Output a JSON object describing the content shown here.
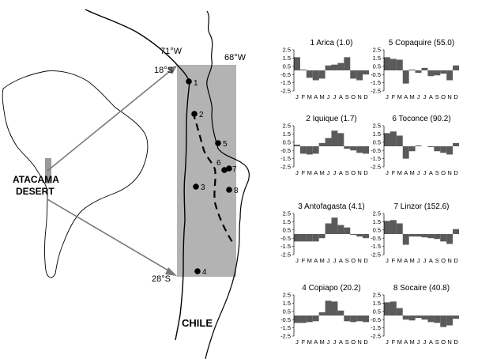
{
  "map": {
    "labels": {
      "lon_71": "71°W",
      "lon_68": "68°W",
      "lat_18": "18°S",
      "lat_28": "28°S",
      "region_line1": "ATACAMA",
      "region_line2": "DESERT",
      "country": "CHILE"
    },
    "stations": [
      {
        "number": "1"
      },
      {
        "number": "2"
      },
      {
        "number": "3"
      },
      {
        "number": "4"
      },
      {
        "number": "5"
      },
      {
        "number": "6"
      },
      {
        "number": "7"
      },
      {
        "number": "8"
      }
    ],
    "colors": {
      "box": "#b3b3b3",
      "arrow": "#7a7a7a",
      "land": "#ffffff",
      "outline": "#000000"
    }
  },
  "chart_data": {
    "type": "bar",
    "categories": [
      "J",
      "F",
      "M",
      "A",
      "M",
      "J",
      "J",
      "A",
      "S",
      "O",
      "N",
      "D"
    ],
    "yticks": [
      "2.5",
      "1.5",
      "0.5",
      "-0.5",
      "-1.5",
      "-2.5"
    ],
    "ylim": [
      -2.5,
      2.5
    ],
    "bar_color": "#5a5a5a",
    "panels": [
      {
        "title": "1 Arica (1.0)",
        "values": [
          1.6,
          0.1,
          -0.9,
          -1.2,
          -1.0,
          0.6,
          0.7,
          0.9,
          1.6,
          -1.0,
          -1.2,
          -0.5
        ]
      },
      {
        "title": "5 Copaquire (55.0)",
        "values": [
          1.6,
          1.4,
          1.3,
          -1.6,
          0.1,
          -0.3,
          0.3,
          -0.7,
          -0.6,
          -0.4,
          -1.2,
          0.6
        ]
      },
      {
        "title": "2 Iquique (1.7)",
        "values": [
          0.2,
          -0.9,
          -1.0,
          -0.9,
          0.4,
          1.0,
          1.9,
          1.6,
          -0.3,
          -0.5,
          -0.8,
          -0.9
        ]
      },
      {
        "title": "6 Toconce (90.2)",
        "values": [
          1.6,
          1.8,
          1.3,
          -1.5,
          -0.6,
          0.1,
          0.0,
          -0.1,
          -0.6,
          -0.8,
          -1.0,
          0.4
        ]
      },
      {
        "title": "3 Antofagasta (4.1)",
        "values": [
          -0.9,
          -0.9,
          -0.9,
          -0.9,
          -0.5,
          1.3,
          2.0,
          1.1,
          0.8,
          -0.1,
          -0.3,
          -0.5
        ]
      },
      {
        "title": "7 Linzor (152.6)",
        "values": [
          1.6,
          1.7,
          1.3,
          -1.3,
          -0.3,
          -0.3,
          -0.4,
          -0.5,
          -0.6,
          -0.9,
          -1.2,
          0.6
        ]
      },
      {
        "title": "4 Copiapo (20.2)",
        "values": [
          -0.9,
          -0.9,
          -0.8,
          -0.7,
          0.4,
          1.8,
          1.7,
          0.6,
          -0.7,
          -0.8,
          -0.7,
          -0.8
        ]
      },
      {
        "title": "8 Socaire (40.8)",
        "values": [
          1.6,
          1.7,
          0.9,
          -0.5,
          -0.6,
          -0.3,
          -0.5,
          -0.8,
          -0.9,
          -1.4,
          -1.2,
          -0.4
        ]
      }
    ]
  }
}
